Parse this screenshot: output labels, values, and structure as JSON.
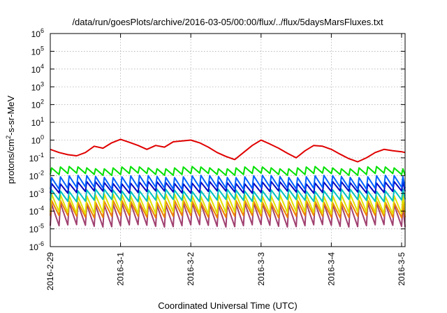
{
  "chart_data": {
    "type": "line",
    "title": "/data/run/goesPlots/archive/2016-03-05/00:00/flux/../flux/5daysMarsFluxes.txt",
    "xlabel": "Coordinated Universal Time (UTC)",
    "ylabel": "protons/cm²-s-sr-MeV",
    "ylabel_parts": [
      "protons/cm",
      "2",
      "-s-sr-MeV"
    ],
    "yscale": "log",
    "ylim": [
      1e-06,
      1000000.0
    ],
    "xlim_days": [
      0,
      5.05
    ],
    "x_tick_labels": [
      "2016-2-29",
      "2016-3-1",
      "2016-3-2",
      "2016-3-3",
      "2016-3-4",
      "2016-3-5"
    ],
    "y_tick_exponents": [
      "-6",
      "-5",
      "-4",
      "-3",
      "-2",
      "-1",
      "0",
      "1",
      "2",
      "3",
      "4",
      "5",
      "6"
    ],
    "grid": true,
    "legend": "none",
    "series": [
      {
        "color": "#e00000",
        "x": [
          "2016-2-29 00:00",
          "2016-2-29 03:00",
          "2016-2-29 06:00",
          "2016-2-29 09:00",
          "2016-2-29 12:00",
          "2016-2-29 15:00",
          "2016-2-29 18:00",
          "2016-2-29 21:00",
          "2016-3-1 00:00",
          "2016-3-1 03:00",
          "2016-3-1 06:00",
          "2016-3-1 09:00",
          "2016-3-1 12:00",
          "2016-3-1 15:00",
          "2016-3-1 18:00",
          "2016-3-1 21:00",
          "2016-3-2 00:00",
          "2016-3-2 03:00",
          "2016-3-2 06:00",
          "2016-3-2 09:00",
          "2016-3-2 12:00",
          "2016-3-2 15:00",
          "2016-3-2 18:00",
          "2016-3-2 21:00",
          "2016-3-3 00:00",
          "2016-3-3 03:00",
          "2016-3-3 06:00",
          "2016-3-3 09:00",
          "2016-3-3 12:00",
          "2016-3-3 15:00",
          "2016-3-3 18:00",
          "2016-3-3 21:00",
          "2016-3-4 00:00",
          "2016-3-4 03:00",
          "2016-3-4 06:00",
          "2016-3-4 09:00",
          "2016-3-4 12:00",
          "2016-3-4 15:00",
          "2016-3-4 18:00",
          "2016-3-4 21:00",
          "2016-3-5 00:00",
          "2016-3-5 01:12"
        ],
        "y": [
          0.3,
          0.2,
          0.15,
          0.13,
          0.2,
          0.45,
          0.35,
          0.7,
          1.1,
          0.75,
          0.5,
          0.3,
          0.5,
          0.4,
          0.8,
          0.9,
          1.0,
          0.7,
          0.4,
          0.2,
          0.12,
          0.08,
          0.2,
          0.5,
          1.0,
          0.6,
          0.35,
          0.18,
          0.1,
          0.25,
          0.5,
          0.45,
          0.3,
          0.16,
          0.09,
          0.06,
          0.1,
          0.2,
          0.3,
          0.25,
          0.22,
          0.2
        ]
      },
      {
        "color": "#00e000",
        "upper": 0.028,
        "lower": 0.012,
        "cycles_per_day": 8
      },
      {
        "color": "#0060ff",
        "upper": 0.009,
        "lower": 0.002,
        "cycles_per_day": 8
      },
      {
        "color": "#0000c0",
        "upper": 0.004,
        "lower": 0.0012,
        "cycles_per_day": 8
      },
      {
        "color": "#00c0c0",
        "upper": 0.0015,
        "lower": 0.0004,
        "cycles_per_day": 8
      },
      {
        "color": "#e0e000",
        "upper": 0.0008,
        "lower": 8e-05,
        "cycles_per_day": 8
      },
      {
        "color": "#f08000",
        "upper": 0.00035,
        "lower": 5e-05,
        "cycles_per_day": 8
      },
      {
        "color": "#a04070",
        "upper": 0.00025,
        "lower": 1.5e-05,
        "cycles_per_day": 8
      }
    ]
  }
}
